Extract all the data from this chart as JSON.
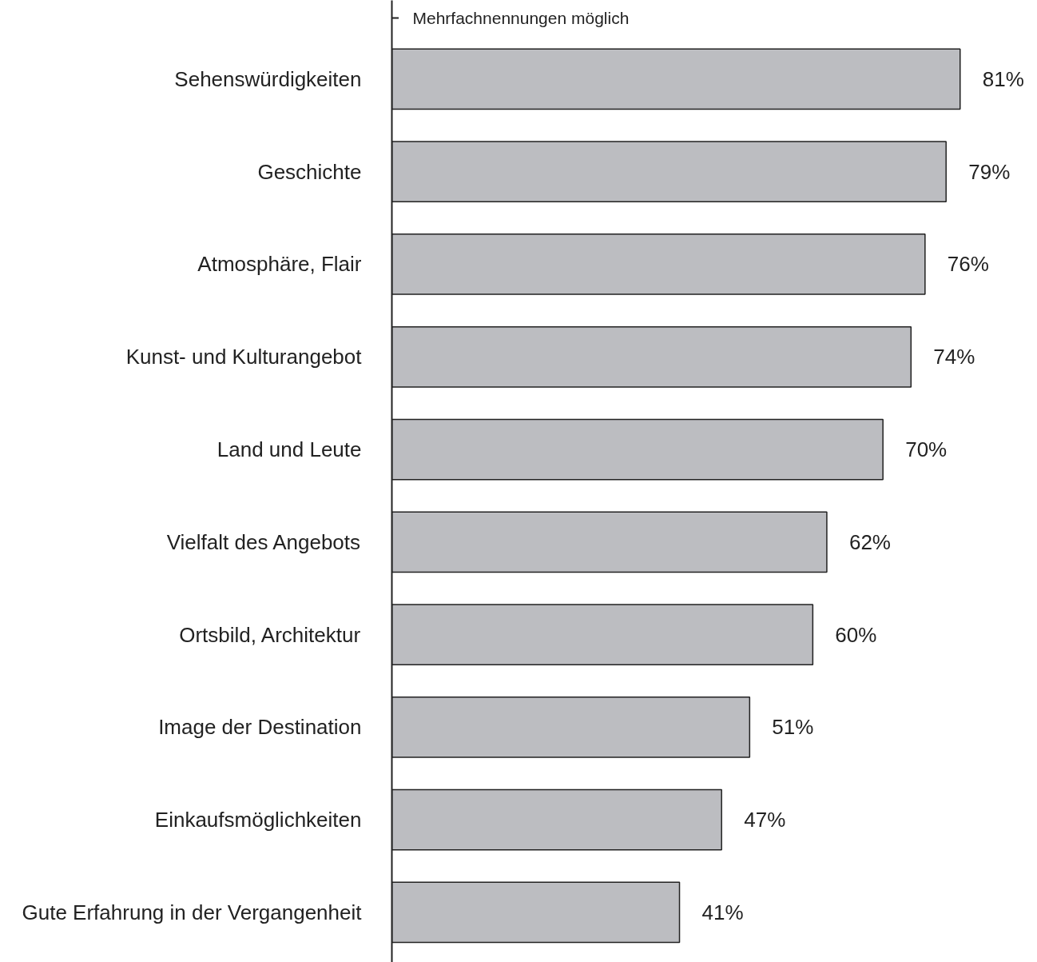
{
  "chart_data": {
    "type": "bar",
    "orientation": "horizontal",
    "categories": [
      "Sehenswürdigkeiten",
      "Geschichte",
      "Atmosphäre, Flair",
      "Kunst- und Kulturangebot",
      "Land und Leute",
      "Vielfalt des Angebots",
      "Ortsbild, Architektur",
      "Image der Destination",
      "Einkaufsmöglichkeiten",
      "Gute Erfahrung in der Vergangenheit"
    ],
    "values": [
      81,
      79,
      76,
      74,
      70,
      62,
      60,
      51,
      47,
      41
    ],
    "value_labels": [
      "81%",
      "79%",
      "76%",
      "74%",
      "70%",
      "62%",
      "60%",
      "51%",
      "47%",
      "41%"
    ],
    "color": "#bcbdc1",
    "annotations": [
      "Mehrfachnennungen möglich"
    ]
  }
}
